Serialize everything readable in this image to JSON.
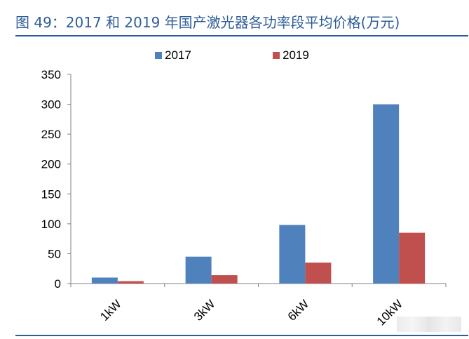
{
  "figure": {
    "title": "图 49：2017 和 2019 年国产激光器各功率段平均价格(万元)"
  },
  "colors": {
    "accent": "#2e5c98",
    "series_2017": "#4f81bd",
    "series_2019": "#c0504d"
  },
  "chart_data": {
    "type": "bar",
    "title": "",
    "xlabel": "",
    "ylabel": "",
    "categories": [
      "1kW",
      "3kW",
      "6kW",
      "10kW"
    ],
    "series": [
      {
        "name": "2017",
        "values": [
          10,
          45,
          98,
          300
        ]
      },
      {
        "name": "2019",
        "values": [
          4,
          14,
          35,
          85
        ]
      }
    ],
    "ylim": [
      0,
      350
    ],
    "yticks": [
      "0",
      "50",
      "100",
      "150",
      "200",
      "250",
      "300",
      "350"
    ],
    "grid": false,
    "legend": "top-center"
  }
}
